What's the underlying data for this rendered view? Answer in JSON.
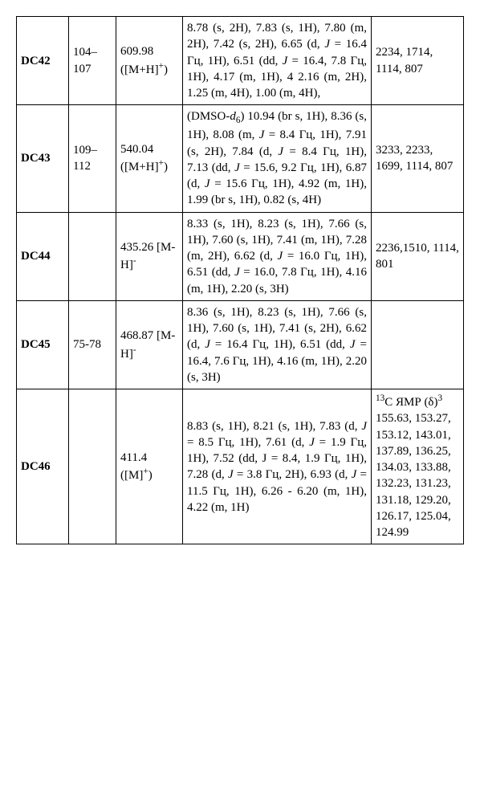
{
  "rows": [
    {
      "id": "DC42",
      "mp": "104–107",
      "mass": "609.98 ([M+H]<sup>+</sup>)",
      "nmr": "8.78 (s, 2H), 7.83 (s, 1H), 7.80 (m, 2H), 7.42 (s, 2H), 6.65 (d, <span class=\"ital\">J</span> = 16.4 Гц, 1H), 6.51 (dd, <span class=\"ital\">J</span> = 16.4, 7.8 Гц, 1H), 4.17 (m, 1H), 4 2.16 (m, 2H), 1.25 (m, 4H), 1.00 (m, 4H),",
      "ir": "2234, 1714, 1114, 807"
    },
    {
      "id": "DC43",
      "mp": "109–112",
      "mass": "540.04 ([M+H]<sup>+</sup>)",
      "nmr": "(DMSO-<span class=\"ital\">d</span><sub>6</sub>) 10.94 (br s, 1H), 8.36 (s, 1H), 8.08 (m, <span class=\"ital\">J</span> = 8.4 Гц, 1H), 7.91 (s, 2H), 7.84 (d, <span class=\"ital\">J</span> = 8.4 Гц, 1H), 7.13 (dd, <span class=\"ital\">J</span> = 15.6, 9.2 Гц, 1H), 6.87 (d, <span class=\"ital\">J</span> = 15.6 Гц, 1H), 4.92 (m, 1H), 1.99 (br s, 1H), 0.82 (s, 4H)",
      "ir": "3233, 2233, 1699, 1114, 807"
    },
    {
      "id": "DC44",
      "mp": "",
      "mass": "435.26 [M-H]<sup>-</sup>",
      "nmr": "8.33 (s, 1H), 8.23 (s, 1H), 7.66 (s, 1H), 7.60 (s, 1H), 7.41 (m, 1H), 7.28 (m, 2H), 6.62 (d, <span class=\"ital\">J</span> = 16.0 Гц, 1H), 6.51 (dd, <span class=\"ital\">J</span> = 16.0, 7.8 Гц, 1H), 4.16 (m, 1H), 2.20 (s, 3H)",
      "ir": "2236,1510, 1114, 801"
    },
    {
      "id": "DC45",
      "mp": "75-78",
      "mass": "468.87 [M-H]<sup>-</sup>",
      "nmr": "8.36 (s, 1H), 8.23 (s, 1H), 7.66 (s, 1H), 7.60 (s, 1H), 7.41 (s, 2H), 6.62 (d, <span class=\"ital\">J</span> = 16.4 Гц, 1H), 6.51 (dd, <span class=\"ital\">J</span> = 16.4, 7.6 Гц, 1H), 4.16 (m, 1H), 2.20 (s, 3H)",
      "ir": ""
    },
    {
      "id": "DC46",
      "mp": "",
      "mass": "411.4 ([M]<sup>+</sup>)",
      "nmr": "8.83 (s, 1H), 8.21 (s, 1H), 7.83 (d, <span class=\"ital\">J</span> = 8.5 Гц, 1H), 7.61 (d, <span class=\"ital\">J</span> = 1.9 Гц, 1H), 7.52 (dd, J = 8.4, 1.9 Гц, 1H), 7.28 (d, <span class=\"ital\">J</span> = 3.8 Гц, 2H), 6.93 (d, <span class=\"ital\">J</span> = 11.5 Гц, 1H), 6.26 - 6.20 (m, 1H), 4.22 (m, 1H)",
      "ir": "<sup>13</sup>C ЯМР (δ)<sup>3</sup> 155.63, 153.27, 153.12, 143.01, 137.89, 136.25, 134.03, 133.88, 132.23, 131.23, 131.18, 129.20, 126.17, 125.04, 124.99"
    }
  ]
}
